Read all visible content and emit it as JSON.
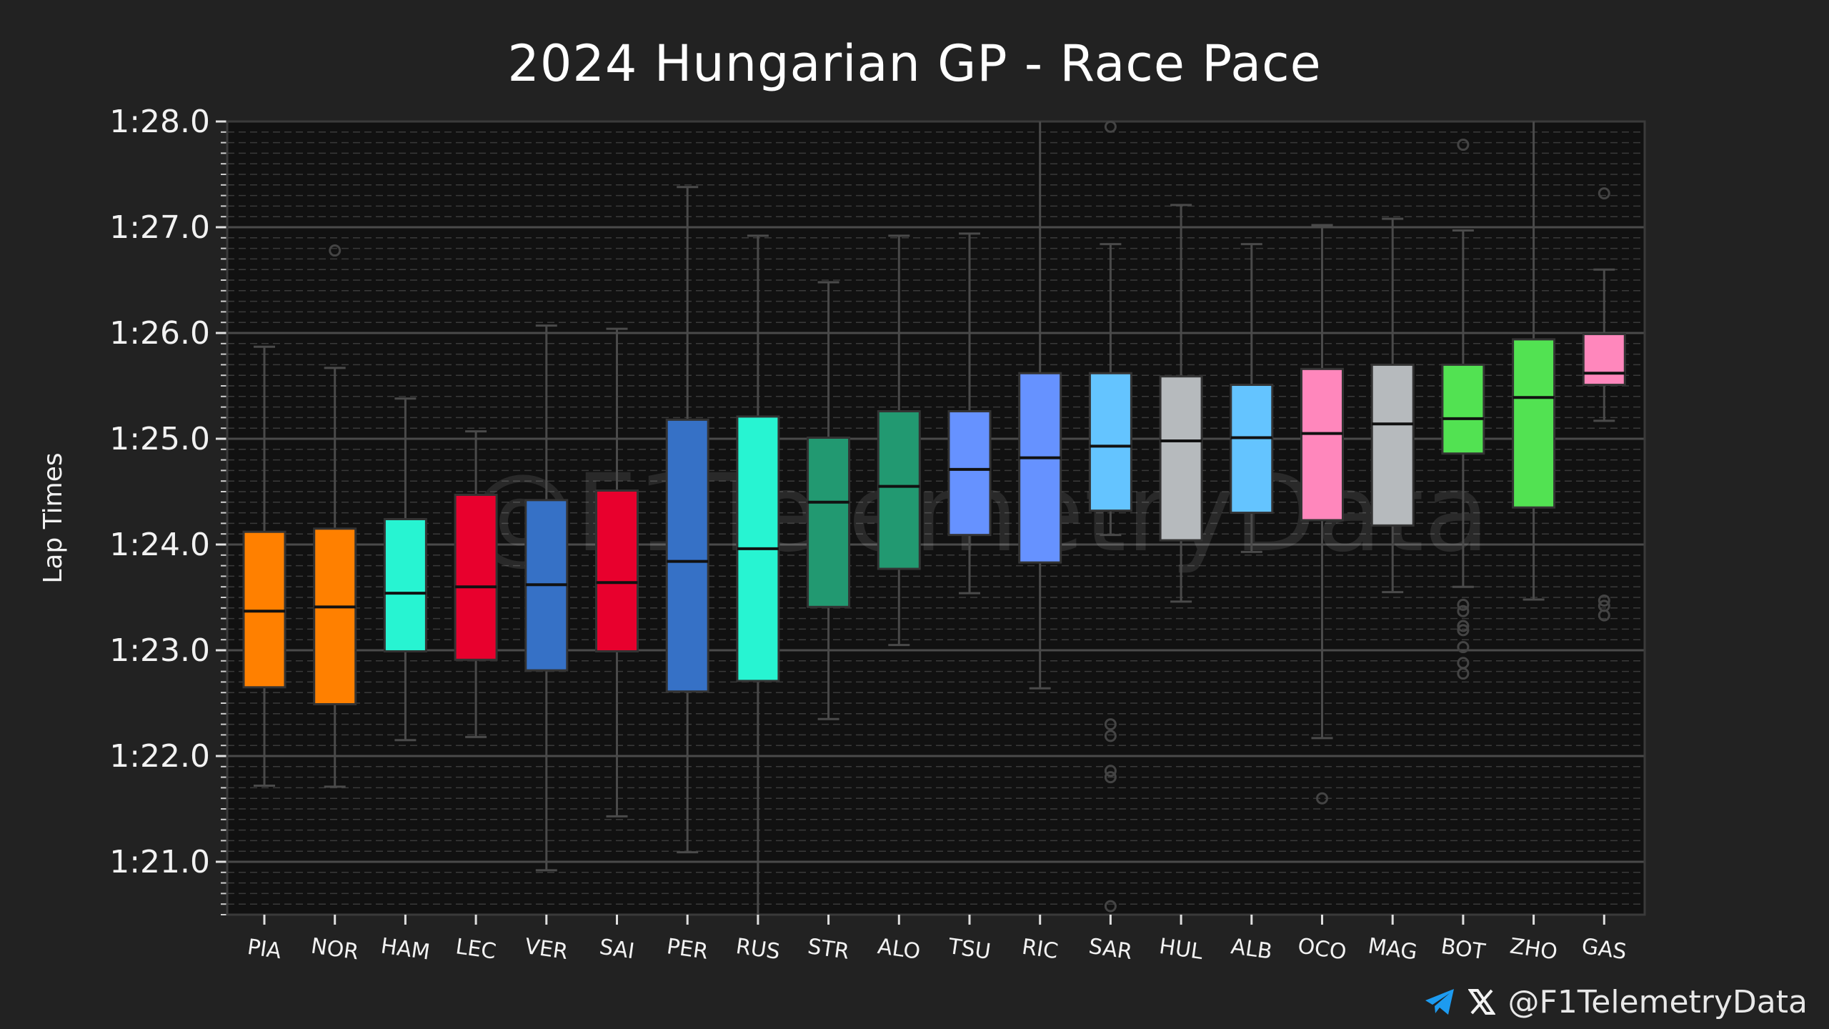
{
  "chart_data": {
    "type": "box",
    "title": "2024 Hungarian GP - Race Pace",
    "ylabel": "Lap Times",
    "xlabel": "",
    "ylim": [
      80.5,
      88.0
    ],
    "yticks": [
      {
        "value": 88.0,
        "label": "1:28.0"
      },
      {
        "value": 87.0,
        "label": "1:27.0"
      },
      {
        "value": 86.0,
        "label": "1:26.0"
      },
      {
        "value": 85.0,
        "label": "1:25.0"
      },
      {
        "value": 84.0,
        "label": "1:24.0"
      },
      {
        "value": 83.0,
        "label": "1:23.0"
      },
      {
        "value": 82.0,
        "label": "1:22.0"
      },
      {
        "value": 81.0,
        "label": "1:21.0"
      }
    ],
    "grid": true,
    "watermark": "@F1TelemetryData",
    "drivers": [
      {
        "name": "PIA",
        "color": "#ff8000",
        "whisker_low": 81.72,
        "q1": 82.65,
        "median": 83.37,
        "q3": 84.12,
        "whisker_high": 85.87,
        "outliers": []
      },
      {
        "name": "NOR",
        "color": "#ff8000",
        "whisker_low": 81.71,
        "q1": 82.49,
        "median": 83.41,
        "q3": 84.15,
        "whisker_high": 85.67,
        "outliers": [
          86.78
        ]
      },
      {
        "name": "HAM",
        "color": "#27f4d2",
        "whisker_low": 82.15,
        "q1": 82.99,
        "median": 83.54,
        "q3": 84.24,
        "whisker_high": 85.38,
        "outliers": []
      },
      {
        "name": "LEC",
        "color": "#e8002d",
        "whisker_low": 82.18,
        "q1": 82.91,
        "median": 83.6,
        "q3": 84.47,
        "whisker_high": 85.07,
        "outliers": []
      },
      {
        "name": "VER",
        "color": "#3671c6",
        "whisker_low": 80.92,
        "q1": 82.81,
        "median": 83.62,
        "q3": 84.42,
        "whisker_high": 86.07,
        "outliers": []
      },
      {
        "name": "SAI",
        "color": "#e8002d",
        "whisker_low": 81.43,
        "q1": 82.99,
        "median": 83.64,
        "q3": 84.51,
        "whisker_high": 86.04,
        "outliers": []
      },
      {
        "name": "PER",
        "color": "#3671c6",
        "whisker_low": 81.09,
        "q1": 82.61,
        "median": 83.84,
        "q3": 85.18,
        "whisker_high": 87.38,
        "outliers": []
      },
      {
        "name": "RUS",
        "color": "#27f4d2",
        "whisker_low": 80.5,
        "q1": 82.71,
        "median": 83.96,
        "q3": 85.21,
        "whisker_high": 86.92,
        "outliers": []
      },
      {
        "name": "STR",
        "color": "#229971",
        "whisker_low": 82.35,
        "q1": 83.41,
        "median": 84.4,
        "q3": 85.01,
        "whisker_high": 86.48,
        "outliers": []
      },
      {
        "name": "ALO",
        "color": "#229971",
        "whisker_low": 83.05,
        "q1": 83.77,
        "median": 84.55,
        "q3": 85.26,
        "whisker_high": 86.92,
        "outliers": []
      },
      {
        "name": "TSU",
        "color": "#6692ff",
        "whisker_low": 83.54,
        "q1": 84.09,
        "median": 84.71,
        "q3": 85.26,
        "whisker_high": 86.94,
        "outliers": []
      },
      {
        "name": "RIC",
        "color": "#6692ff",
        "whisker_low": 82.64,
        "q1": 83.83,
        "median": 84.82,
        "q3": 85.62,
        "whisker_high": 88.0,
        "outliers": []
      },
      {
        "name": "SAR",
        "color": "#64c4ff",
        "whisker_low": 84.09,
        "q1": 84.32,
        "median": 84.93,
        "q3": 85.62,
        "whisker_high": 86.84,
        "outliers": [
          87.95,
          82.3,
          82.19,
          81.86,
          81.8,
          80.58
        ]
      },
      {
        "name": "HUL",
        "color": "#b6babd",
        "whisker_low": 83.46,
        "q1": 84.04,
        "median": 84.98,
        "q3": 85.59,
        "whisker_high": 87.21,
        "outliers": []
      },
      {
        "name": "ALB",
        "color": "#64c4ff",
        "whisker_low": 83.93,
        "q1": 84.3,
        "median": 85.01,
        "q3": 85.51,
        "whisker_high": 86.84,
        "outliers": []
      },
      {
        "name": "OCO",
        "color": "#ff87bc",
        "whisker_low": 82.17,
        "q1": 84.23,
        "median": 85.05,
        "q3": 85.66,
        "whisker_high": 87.02,
        "outliers": [
          81.6
        ]
      },
      {
        "name": "MAG",
        "color": "#b6babd",
        "whisker_low": 83.55,
        "q1": 84.18,
        "median": 85.14,
        "q3": 85.7,
        "whisker_high": 87.08,
        "outliers": []
      },
      {
        "name": "BOT",
        "color": "#52e252",
        "whisker_low": 83.6,
        "q1": 84.86,
        "median": 85.19,
        "q3": 85.7,
        "whisker_high": 86.97,
        "outliers": [
          87.78,
          83.43,
          83.37,
          83.23,
          83.19,
          83.03,
          82.88,
          82.78
        ]
      },
      {
        "name": "ZHO",
        "color": "#52e252",
        "whisker_low": 83.48,
        "q1": 84.35,
        "median": 85.39,
        "q3": 85.94,
        "whisker_high": 88.0,
        "outliers": []
      },
      {
        "name": "GAS",
        "color": "#ff87bc",
        "whisker_low": 85.17,
        "q1": 85.51,
        "median": 85.62,
        "q3": 85.99,
        "whisker_high": 86.6,
        "outliers": [
          87.32,
          83.47,
          83.42,
          83.33
        ]
      }
    ]
  },
  "footer": {
    "handle": "@F1TelemetryData",
    "telegram_icon": "telegram-icon",
    "x_icon": "x-logo-icon",
    "telegram_color": "#1d9bf0"
  }
}
